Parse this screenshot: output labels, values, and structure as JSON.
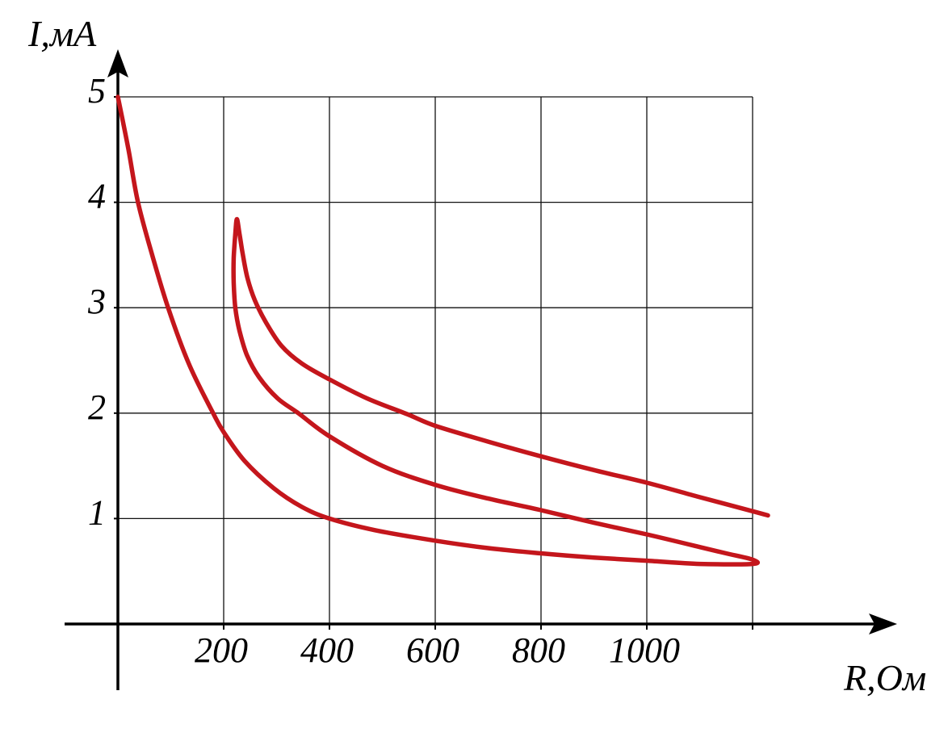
{
  "chart_data": {
    "type": "line",
    "xlabel": "R,Ом",
    "ylabel": "I,мА",
    "xlim": [
      0,
      1200
    ],
    "ylim": [
      0,
      5
    ],
    "x_ticks": [
      200,
      400,
      600,
      800,
      1000
    ],
    "y_ticks": [
      1,
      2,
      3,
      4,
      5
    ],
    "grid": true,
    "series": [
      {
        "color": "#c4161c",
        "x": [
          0,
          20,
          38,
          66,
          95,
          134,
          180,
          200,
          239,
          294,
          348,
          400,
          486,
          600,
          700,
          800,
          900,
          1000,
          1100,
          1200,
          1200,
          1150,
          1100,
          1000,
          900,
          800,
          700,
          600,
          500,
          400,
          341,
          302,
          267,
          244,
          230,
          222,
          219,
          219,
          222,
          225,
          230,
          236,
          245,
          259,
          280,
          309,
          348,
          400,
          471,
          547,
          600,
          700,
          800,
          900,
          1000,
          1095,
          1200,
          1229
        ],
        "y": [
          5.0,
          4.5,
          4.0,
          3.48,
          3.0,
          2.47,
          2.0,
          1.82,
          1.55,
          1.29,
          1.11,
          1.0,
          0.89,
          0.79,
          0.72,
          0.67,
          0.63,
          0.6,
          0.57,
          0.57,
          0.61,
          0.67,
          0.73,
          0.85,
          0.96,
          1.08,
          1.19,
          1.32,
          1.5,
          1.78,
          2.0,
          2.14,
          2.34,
          2.55,
          2.78,
          3.0,
          3.24,
          3.47,
          3.7,
          3.84,
          3.7,
          3.51,
          3.28,
          3.07,
          2.86,
          2.64,
          2.47,
          2.32,
          2.14,
          1.99,
          1.88,
          1.73,
          1.59,
          1.46,
          1.34,
          1.21,
          1.07,
          1.03
        ]
      }
    ]
  },
  "colors": {
    "axis": "#000000",
    "grid": "#111111",
    "background": "#ffffff"
  }
}
